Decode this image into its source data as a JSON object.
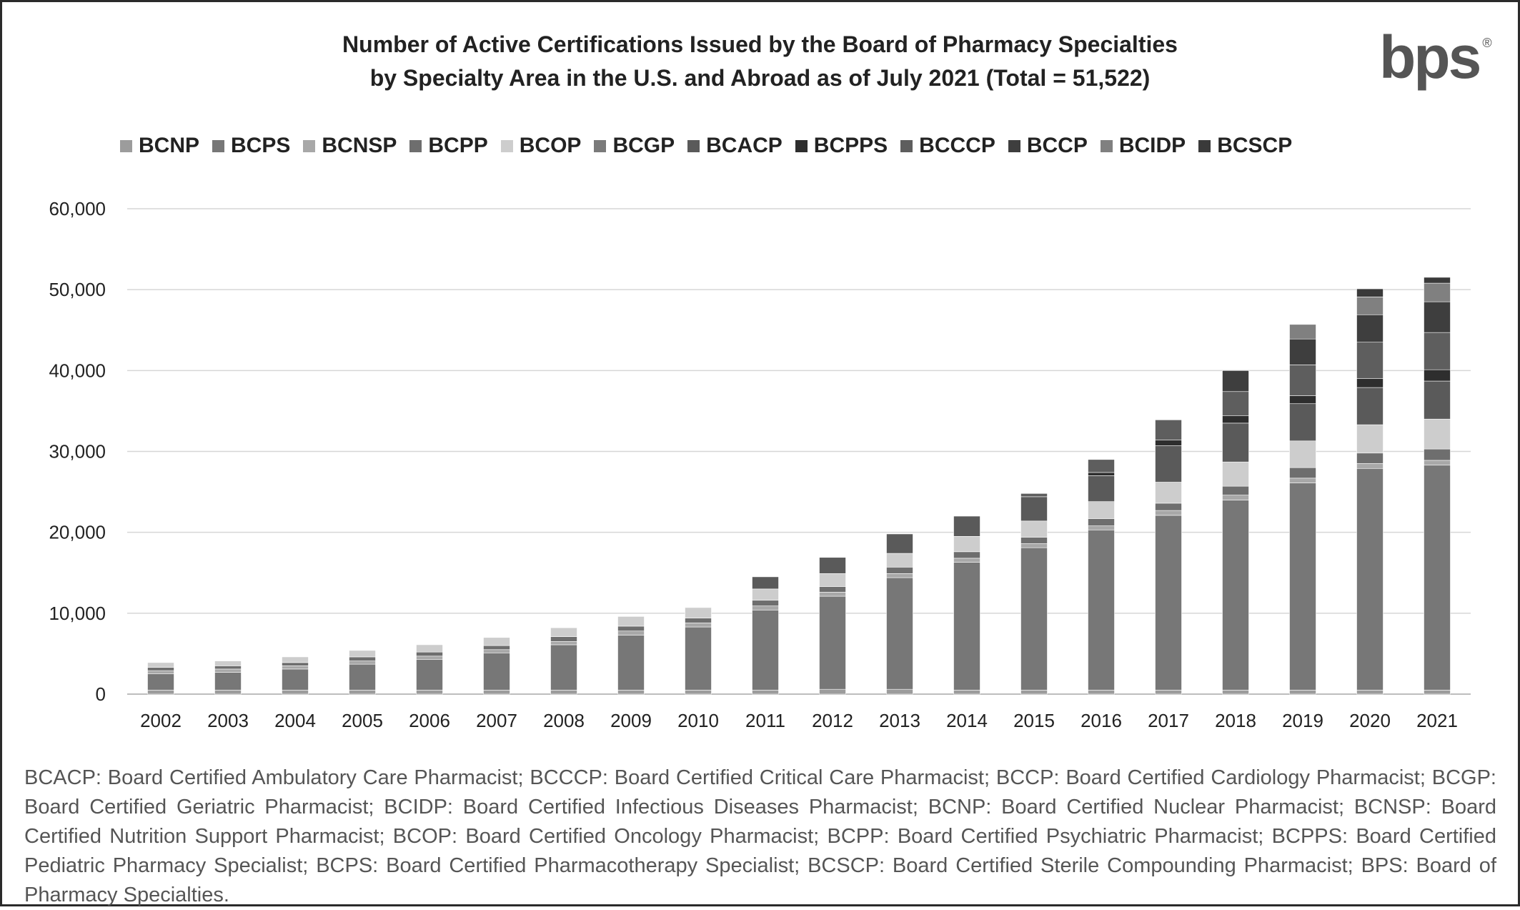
{
  "title_line1": "Number of Active Certifications Issued by the Board of Pharmacy Specialties",
  "title_line2": "by Specialty Area in the U.S. and Abroad as of July 2021 (Total = 51,522)",
  "logo_text": "bps",
  "logo_mark": "®",
  "footnote": "BCACP: Board Certified Ambulatory Care Pharmacist; BCCCP: Board Certified Critical Care Pharmacist; BCCP: Board Certified Cardiology Pharmacist; BCGP: Board Certified Geriatric Pharmacist; BCIDP: Board Certified Infectious Diseases Pharmacist; BCNP: Board Certified Nuclear Pharmacist; BCNSP: Board Certified Nutrition Support Pharmacist; BCOP: Board Certified Oncology Pharmacist; BCPP: Board Certified Psychiatric Pharmacist; BCPPS: Board Certified Pediatric Pharmacy Specialist; BCPS: Board Certified Pharmacotherapy Specialist; BCSCP: Board Certified Sterile Compounding Pharmacist; BPS: Board of Pharmacy Specialties.",
  "chart_data": {
    "type": "bar",
    "stacked": true,
    "title": "Number of Active Certifications Issued by the Board of Pharmacy Specialties by Specialty Area in the U.S. and Abroad as of July 2021 (Total = 51,522)",
    "xlabel": "",
    "ylabel": "",
    "ylim": [
      0,
      60000
    ],
    "yticks": [
      0,
      10000,
      20000,
      30000,
      40000,
      50000,
      60000
    ],
    "ytick_labels": [
      "0",
      "10,000",
      "20,000",
      "30,000",
      "40,000",
      "50,000",
      "60,000"
    ],
    "grid": true,
    "legend_position": "top",
    "categories": [
      "2002",
      "2003",
      "2004",
      "2005",
      "2006",
      "2007",
      "2008",
      "2009",
      "2010",
      "2011",
      "2012",
      "2013",
      "2014",
      "2015",
      "2016",
      "2017",
      "2018",
      "2019",
      "2020",
      "2021"
    ],
    "series": [
      {
        "name": "BCNP",
        "color": "#9c9c9c",
        "values": [
          500,
          500,
          500,
          500,
          500,
          500,
          500,
          500,
          500,
          500,
          600,
          600,
          500,
          500,
          500,
          500,
          500,
          500,
          500,
          500
        ]
      },
      {
        "name": "BCPS",
        "color": "#777777",
        "values": [
          2000,
          2200,
          2600,
          3200,
          3800,
          4600,
          5600,
          6800,
          7800,
          9900,
          11500,
          13800,
          15800,
          17600,
          19800,
          21600,
          23500,
          25600,
          27400,
          27800
        ]
      },
      {
        "name": "BCNSP",
        "color": "#a8a8a8",
        "values": [
          400,
          400,
          400,
          400,
          400,
          400,
          400,
          500,
          500,
          500,
          500,
          500,
          500,
          500,
          500,
          600,
          600,
          600,
          600,
          600
        ]
      },
      {
        "name": "BCPP",
        "color": "#6e6e6e",
        "values": [
          400,
          400,
          400,
          500,
          500,
          500,
          600,
          600,
          600,
          700,
          700,
          800,
          800,
          800,
          900,
          900,
          1100,
          1300,
          1300,
          1400
        ]
      },
      {
        "name": "BCOP",
        "color": "#cdcdcd",
        "values": [
          600,
          600,
          700,
          800,
          900,
          1000,
          1100,
          1200,
          1300,
          1400,
          1600,
          1700,
          1900,
          2000,
          2100,
          2600,
          3000,
          3300,
          3500,
          3700
        ]
      },
      {
        "name": "BCGP",
        "color": "#7a7a7a",
        "values": [
          0,
          0,
          0,
          0,
          0,
          0,
          0,
          0,
          0,
          0,
          0,
          0,
          0,
          0,
          0,
          0,
          0,
          0,
          0,
          0
        ]
      },
      {
        "name": "BCACP",
        "color": "#5a5a5a",
        "values": [
          0,
          0,
          0,
          0,
          0,
          0,
          0,
          0,
          0,
          1500,
          2000,
          2400,
          2500,
          3000,
          3200,
          4500,
          4800,
          4600,
          4600,
          4700
        ]
      },
      {
        "name": "BCPPS",
        "color": "#2e2e2e",
        "values": [
          0,
          0,
          0,
          0,
          0,
          0,
          0,
          0,
          0,
          0,
          0,
          0,
          0,
          0,
          400,
          700,
          900,
          1000,
          1100,
          1400
        ]
      },
      {
        "name": "BCCCP",
        "color": "#5e5e5e",
        "values": [
          0,
          0,
          0,
          0,
          0,
          0,
          0,
          0,
          0,
          0,
          0,
          0,
          0,
          400,
          1600,
          2500,
          3000,
          3800,
          4500,
          4600
        ]
      },
      {
        "name": "BCCP",
        "color": "#3e3e3e",
        "values": [
          0,
          0,
          0,
          0,
          0,
          0,
          0,
          0,
          0,
          0,
          0,
          0,
          0,
          0,
          0,
          0,
          2600,
          3200,
          3400,
          3800
        ]
      },
      {
        "name": "BCIDP",
        "color": "#808080",
        "values": [
          0,
          0,
          0,
          0,
          0,
          0,
          0,
          0,
          0,
          0,
          0,
          0,
          0,
          0,
          0,
          0,
          0,
          1800,
          2200,
          2300
        ]
      },
      {
        "name": "BCSCP",
        "color": "#3a3a3a",
        "values": [
          0,
          0,
          0,
          0,
          0,
          0,
          0,
          0,
          0,
          0,
          0,
          0,
          0,
          0,
          0,
          0,
          0,
          0,
          1000,
          722
        ]
      }
    ]
  }
}
